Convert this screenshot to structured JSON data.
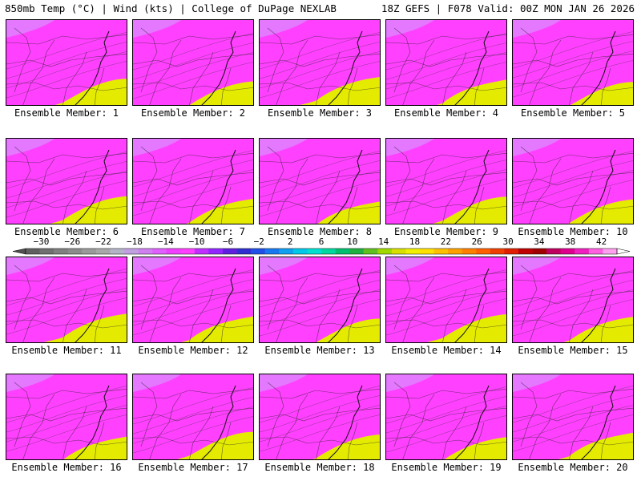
{
  "header": {
    "left_title": "850mb Temp (°C) | Wind (kts) | College of DuPage NEXLAB",
    "right_title": "18Z GEFS | F078 Valid: 00Z MON JAN 26 2026"
  },
  "member_label_prefix": "Ensemble Member:",
  "members": [
    1,
    2,
    3,
    4,
    5,
    6,
    7,
    8,
    9,
    10,
    11,
    12,
    13,
    14,
    15,
    16,
    17,
    18,
    19,
    20
  ],
  "colorbar": {
    "tick_labels": [
      "−30",
      "−26",
      "−22",
      "−18",
      "−14",
      "−10",
      "−6",
      "−2",
      "2",
      "6",
      "10",
      "14",
      "18",
      "22",
      "26",
      "30",
      "34",
      "38",
      "42"
    ],
    "min": -32,
    "max": 44,
    "step": 2,
    "colors": [
      "#606060",
      "#707070",
      "#808080",
      "#8c8c8c",
      "#9a9a9a",
      "#a8a8a8",
      "#b4b4c8",
      "#c0a0e0",
      "#d080f0",
      "#e060ff",
      "#f040ff",
      "#ff40ff",
      "#c030ff",
      "#9028ff",
      "#6020e0",
      "#3030d0",
      "#2050e8",
      "#1878f0",
      "#10a0f0",
      "#00c8e8",
      "#00e0d0",
      "#00d8a0",
      "#00c070",
      "#20b040",
      "#60c020",
      "#a0d800",
      "#d8e000",
      "#f0f000",
      "#ffe000",
      "#ffc000",
      "#ffa000",
      "#ff8000",
      "#ff6000",
      "#f04000",
      "#e02000",
      "#c00000",
      "#a00000",
      "#c00060",
      "#e00090",
      "#f020c0",
      "#ff60e0",
      "#ffa0f0"
    ]
  }
}
